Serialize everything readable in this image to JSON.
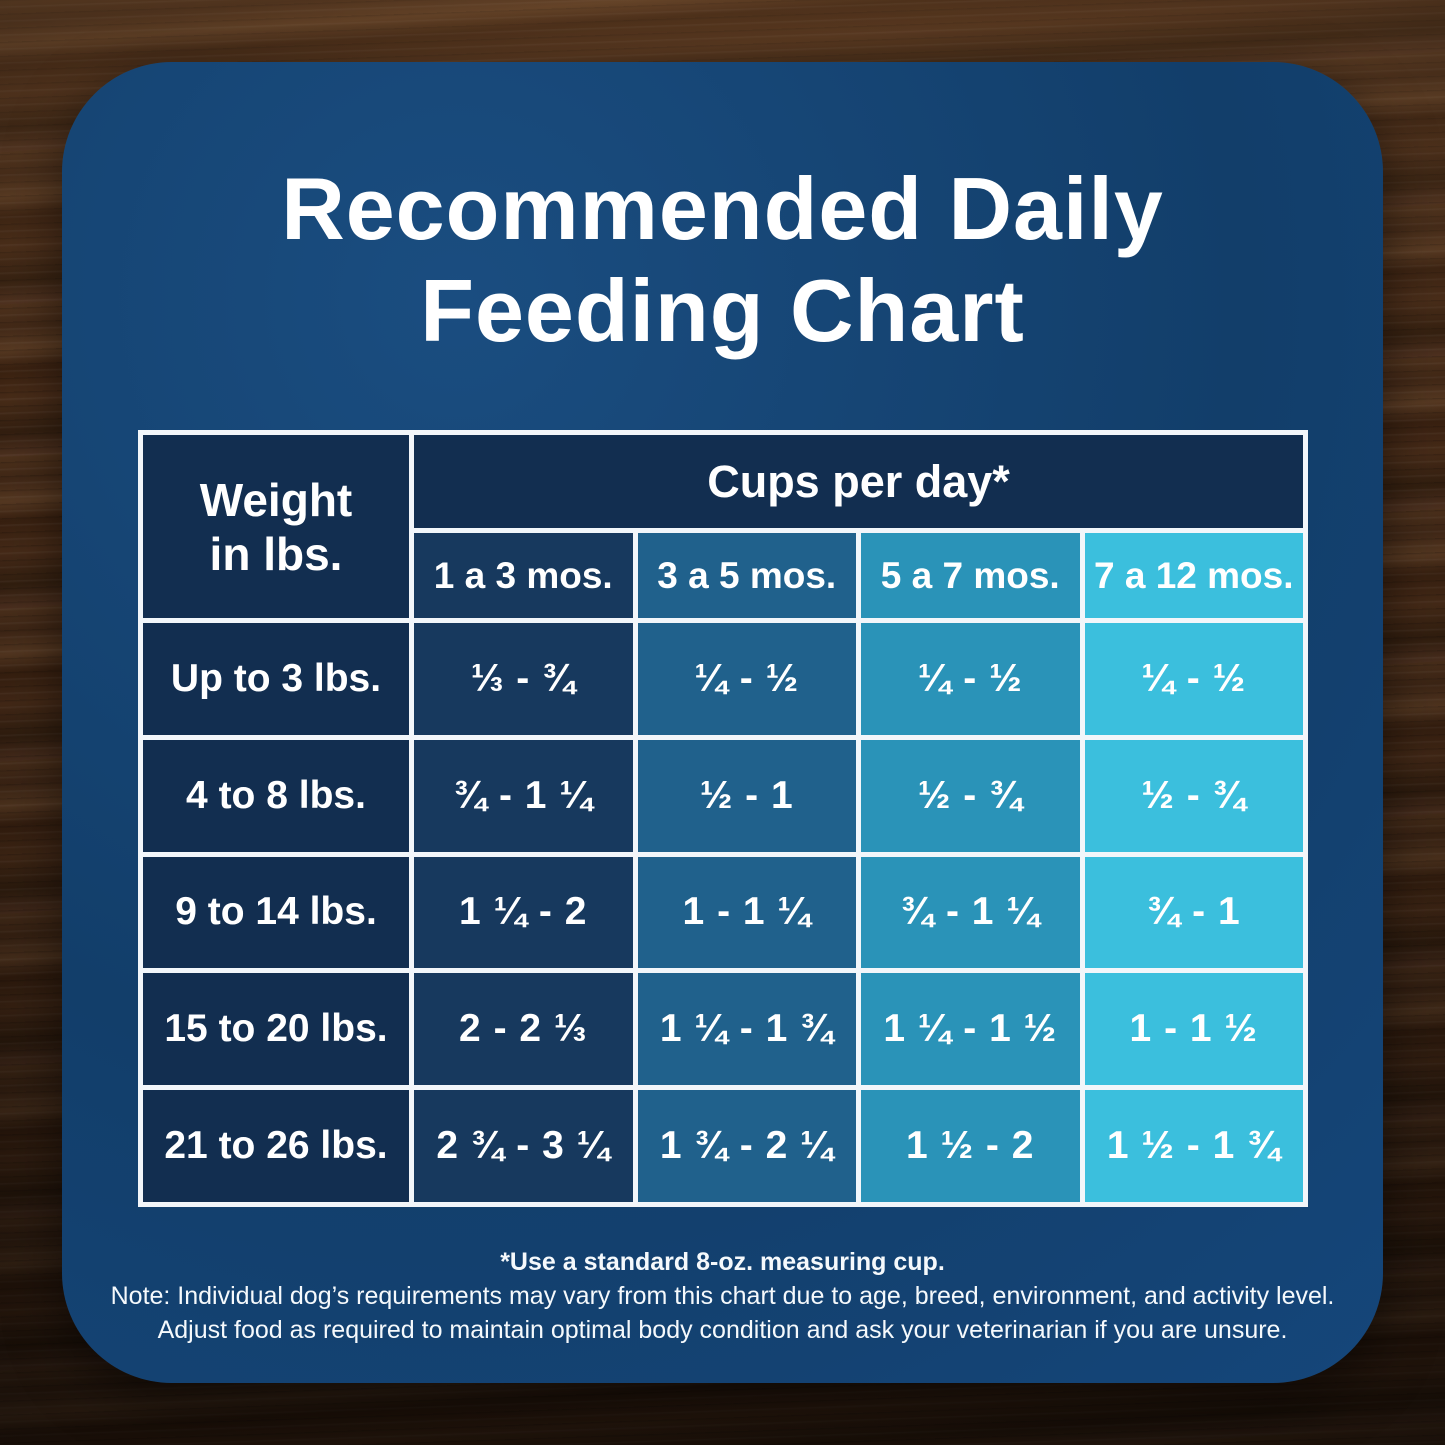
{
  "title": {
    "line1": "Recommended Daily",
    "line2": "Feeding Chart"
  },
  "table": {
    "weight_header_line1": "Weight",
    "weight_header_line2": "in lbs.",
    "cups_header": "Cups per day*"
  },
  "footnotes": {
    "cup": "*Use a standard 8-oz. measuring cup.",
    "note1": "Note: Individual dog’s requirements may vary from this chart due to age, breed, environment, and activity level.",
    "note2": "Adjust food as required to maintain optimal body condition and ask your veterinarian if you are unsure."
  },
  "colors": {
    "card_background": "#15467A",
    "header_navy": "#122E50",
    "age_column_1": "#17395E",
    "age_column_2": "#20618C",
    "age_column_3": "#2A93B8",
    "age_column_4": "#3BBFDD",
    "grid_border": "#F2F6FA",
    "text": "#FFFFFF"
  },
  "chart_data": {
    "type": "table",
    "title": "Recommended Daily Feeding Chart",
    "units": "cups per day (standard 8-oz. measuring cup)",
    "columns": [
      "Weight in lbs.",
      "1 a 3 mos.",
      "3 a 5 mos.",
      "5 a 7 mos.",
      "7 a 12 mos."
    ],
    "rows": [
      [
        "Up to 3 lbs.",
        "⅓ - ¾",
        "¼ - ½",
        "¼ - ½",
        "¼ - ½"
      ],
      [
        "4 to 8 lbs.",
        "¾ - 1 ¼",
        "½ - 1",
        "½ - ¾",
        "½ - ¾"
      ],
      [
        "9 to 14 lbs.",
        "1 ¼ - 2",
        "1 - 1 ¼",
        "¾ - 1 ¼",
        "¾ - 1"
      ],
      [
        "15 to 20 lbs.",
        "2 - 2 ⅓",
        "1 ¼ - 1 ¾",
        "1 ¼ - 1 ½",
        "1 - 1 ½"
      ],
      [
        "21 to 26 lbs.",
        "2 ¾ - 3 ¼",
        "1 ¾ - 2 ¼",
        "1 ½ - 2",
        "1 ½ - 1 ¾"
      ]
    ]
  }
}
